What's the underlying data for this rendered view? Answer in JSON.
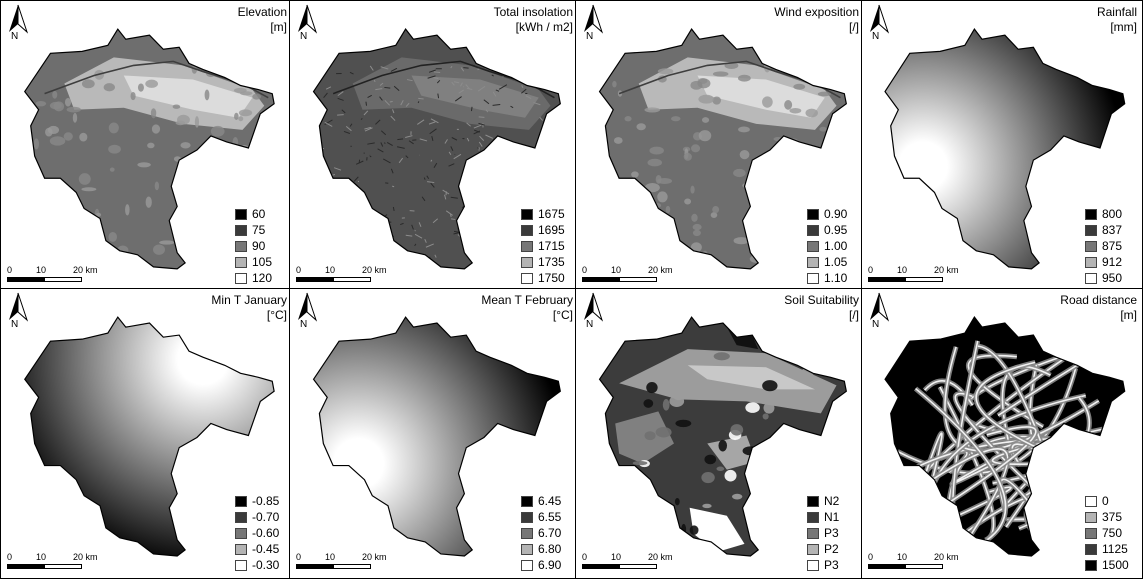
{
  "scale": {
    "tick0": "0",
    "tick1": "10",
    "tick2": "20 km"
  },
  "north_label": "N",
  "panels": [
    {
      "id": "elevation",
      "title": "Elevation",
      "unit": "[m]",
      "fill": "dem",
      "legend": [
        {
          "label": "60",
          "color": "#000000"
        },
        {
          "label": "75",
          "color": "#3a3a3a"
        },
        {
          "label": "90",
          "color": "#777777"
        },
        {
          "label": "105",
          "color": "#b4b4b4"
        },
        {
          "label": "120",
          "color": "#ffffff"
        }
      ]
    },
    {
      "id": "insolation",
      "title": "Total insolation",
      "unit": "[kWh / m2]",
      "fill": "texture",
      "legend": [
        {
          "label": "1675",
          "color": "#000000"
        },
        {
          "label": "1695",
          "color": "#3a3a3a"
        },
        {
          "label": "1715",
          "color": "#777777"
        },
        {
          "label": "1735",
          "color": "#b4b4b4"
        },
        {
          "label": "1750",
          "color": "#ffffff"
        }
      ]
    },
    {
      "id": "wind",
      "title": "Wind exposition",
      "unit": "[/]",
      "fill": "dem",
      "legend": [
        {
          "label": "0.90",
          "color": "#000000"
        },
        {
          "label": "0.95",
          "color": "#3a3a3a"
        },
        {
          "label": "1.00",
          "color": "#777777"
        },
        {
          "label": "1.05",
          "color": "#b4b4b4"
        },
        {
          "label": "1.10",
          "color": "#ffffff"
        }
      ]
    },
    {
      "id": "rainfall",
      "title": "Rainfall",
      "unit": "[mm]",
      "fill": "rain",
      "legend": [
        {
          "label": "800",
          "color": "#000000"
        },
        {
          "label": "837",
          "color": "#3a3a3a"
        },
        {
          "label": "875",
          "color": "#777777"
        },
        {
          "label": "912",
          "color": "#b4b4b4"
        },
        {
          "label": "950",
          "color": "#ffffff"
        }
      ]
    },
    {
      "id": "mintjan",
      "title": "Min T January",
      "unit": "[°C]",
      "fill": "mint",
      "legend": [
        {
          "label": "-0.85",
          "color": "#000000"
        },
        {
          "label": "-0.70",
          "color": "#3a3a3a"
        },
        {
          "label": "-0.60",
          "color": "#777777"
        },
        {
          "label": "-0.45",
          "color": "#b4b4b4"
        },
        {
          "label": "-0.30",
          "color": "#ffffff"
        }
      ]
    },
    {
      "id": "meantfeb",
      "title": "Mean T February",
      "unit": "[°C]",
      "fill": "meant",
      "legend": [
        {
          "label": "6.45",
          "color": "#000000"
        },
        {
          "label": "6.55",
          "color": "#3a3a3a"
        },
        {
          "label": "6.70",
          "color": "#777777"
        },
        {
          "label": "6.80",
          "color": "#b4b4b4"
        },
        {
          "label": "6.90",
          "color": "#ffffff"
        }
      ]
    },
    {
      "id": "soil",
      "title": "Soil Suitability",
      "unit": "[/]",
      "fill": "soil",
      "legend": [
        {
          "label": "N2",
          "color": "#000000"
        },
        {
          "label": "N1",
          "color": "#3a3a3a"
        },
        {
          "label": "P3",
          "color": "#777777"
        },
        {
          "label": "P2",
          "color": "#b4b4b4"
        },
        {
          "label": "P3",
          "color": "#ffffff"
        }
      ]
    },
    {
      "id": "road",
      "title": "Road distance",
      "unit": "[m]",
      "fill": "road",
      "legend": [
        {
          "label": "0",
          "color": "#ffffff"
        },
        {
          "label": "375",
          "color": "#b4b4b4"
        },
        {
          "label": "750",
          "color": "#777777"
        },
        {
          "label": "1125",
          "color": "#3a3a3a"
        },
        {
          "label": "1500",
          "color": "#000000"
        }
      ]
    }
  ]
}
